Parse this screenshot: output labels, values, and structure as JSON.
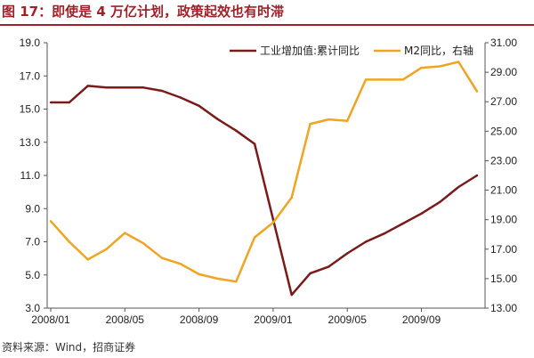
{
  "title": "图 17：即使是 4 万亿计划，政策起效也有时滞",
  "source": "资料来源：Wind，招商证券",
  "chart_data": {
    "type": "line",
    "x": [
      "2008/01",
      "2008/02",
      "2008/03",
      "2008/04",
      "2008/05",
      "2008/06",
      "2008/07",
      "2008/08",
      "2008/09",
      "2008/10",
      "2008/11",
      "2008/12",
      "2009/01",
      "2009/02",
      "2009/03",
      "2009/04",
      "2009/05",
      "2009/06",
      "2009/07",
      "2009/08",
      "2009/09",
      "2009/10",
      "2009/11",
      "2009/12"
    ],
    "xtick_labels": [
      "2008/01",
      "2008/05",
      "2008/09",
      "2009/01",
      "2009/05",
      "2009/09"
    ],
    "series": [
      {
        "name": "工业增加值:累计同比",
        "axis": "left",
        "color": "#7b1a1a",
        "values": [
          15.4,
          15.4,
          16.4,
          16.3,
          16.3,
          16.3,
          16.1,
          15.7,
          15.2,
          14.4,
          13.7,
          12.9,
          null,
          3.8,
          5.1,
          5.5,
          6.3,
          7.0,
          7.5,
          8.1,
          8.7,
          9.4,
          10.3,
          11.0
        ]
      },
      {
        "name": "M2同比，右轴",
        "axis": "right",
        "color": "#f0a422",
        "values": [
          18.9,
          17.5,
          16.3,
          17.0,
          18.1,
          17.4,
          16.4,
          16.0,
          15.3,
          15.0,
          14.8,
          17.8,
          18.8,
          20.5,
          25.5,
          25.8,
          25.7,
          28.5,
          28.5,
          28.5,
          29.3,
          29.4,
          29.7,
          27.7
        ]
      }
    ],
    "y_left": {
      "ylim": [
        3.0,
        19.0
      ],
      "ticks": [
        "19.0",
        "17.0",
        "15.0",
        "13.0",
        "11.0",
        "9.0",
        "7.0",
        "5.0",
        "3.0"
      ]
    },
    "y_right": {
      "ylim": [
        13.0,
        31.0
      ],
      "ticks": [
        "31.00",
        "29.00",
        "27.00",
        "25.00",
        "23.00",
        "21.00",
        "19.00",
        "17.00",
        "15.00",
        "13.00"
      ]
    },
    "grid": false,
    "legend_position": "top-right"
  }
}
